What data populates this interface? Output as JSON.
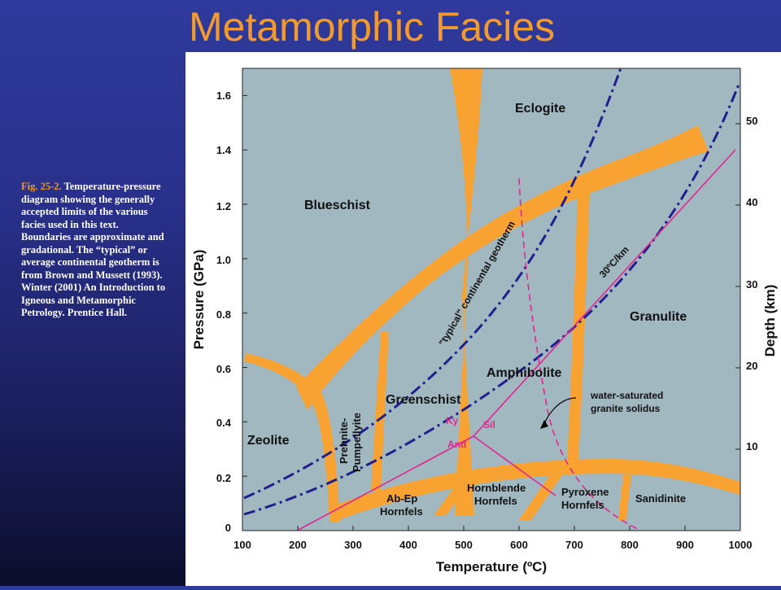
{
  "title": "Metamorphic Facies",
  "caption": {
    "figure_ref": "Fig. 25-2.",
    "text": "Temperature-pressure diagram showing the generally accepted limits of the various facies used in this text. Boundaries are approximate and gradational. The “typical” or average continental geotherm is from Brown and Mussett (1993). Winter (2001) An Introduction to Igneous and Metamorphic Petrology. Prentice Hall."
  },
  "diagram": {
    "xlabel": "Temperature (ºC)",
    "ylabel": "Pressure (GPa)",
    "y2label": "Depth (km)",
    "x_ticks": [
      "100",
      "200",
      "300",
      "400",
      "500",
      "600",
      "700",
      "800",
      "900",
      "1000"
    ],
    "y_ticks": [
      "0",
      "0.2",
      "0.4",
      "0.6",
      "0.8",
      "1.0",
      "1.2",
      "1.4",
      "1.6"
    ],
    "y2_ticks": [
      "10",
      "20",
      "30",
      "40",
      "50"
    ],
    "xlim": [
      100,
      1000
    ],
    "ylim": [
      0,
      1.7
    ],
    "facies": {
      "eclogite": "Eclogite",
      "blueschist": "Blueschist",
      "granulite": "Granulite",
      "amphibolite": "Amphibolite",
      "greenschist": "Greenschist",
      "zeolite": "Zeolite",
      "prehnite_1": "Prehnite-",
      "prehnite_2": "Pumpellyite",
      "abep_1": "Ab-Ep",
      "abep_2": "Hornfels",
      "hornblende_1": "Hornblende",
      "hornblende_2": "Hornfels",
      "pyroxene_1": "Pyroxene",
      "pyroxene_2": "Hornfels",
      "sanidinite": "Sanidinite"
    },
    "annotations": {
      "geotherm": "\"typical\" continental geotherm",
      "gradient": "30ºC/km",
      "solidus_1": "water-saturated",
      "solidus_2": "granite solidus",
      "ky": "Ky",
      "sil": "Sil",
      "and": "And"
    },
    "colors": {
      "background": "#a2b8c1",
      "facies_boundary": "#f8a232",
      "geotherm": "#1f1f8e",
      "aluminosilicate": "#e0278f",
      "title": "#f39a2e"
    }
  }
}
